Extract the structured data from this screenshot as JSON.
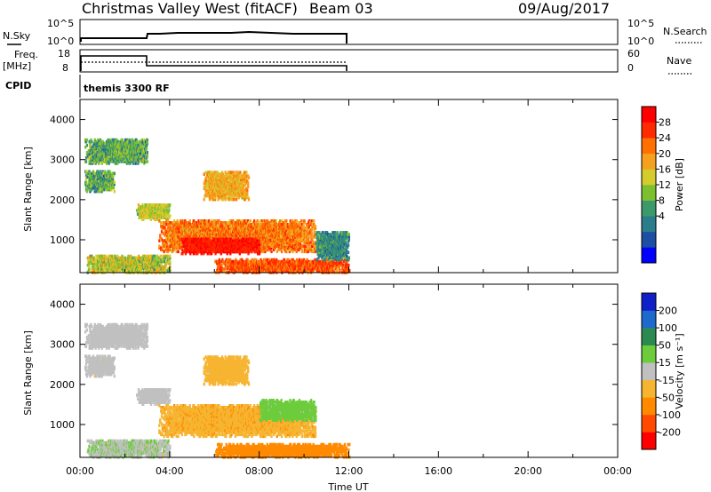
{
  "header": {
    "title": "Christmas Valley West (fitACF)",
    "beam": "Beam 03",
    "date": "09/Aug/2017"
  },
  "strip": {
    "nsky_label": "N.Sky",
    "nsearch_label": "N.Search",
    "nsky_ticks": [
      "10^5",
      "10^0"
    ],
    "nsearch_ticks": [
      "10^5",
      "10^0"
    ],
    "freq_label_1": "Freq.",
    "freq_label_2": "[MHz]",
    "freq_ticks": [
      "18",
      "8"
    ],
    "nave_label": "Nave",
    "nave_ticks": [
      "60",
      "0"
    ],
    "cpid_label": "CPID",
    "cpid_value": "themis 3300 RF"
  },
  "chart_data": [
    {
      "type": "heatmap",
      "name": "power",
      "ylabel": "Slant Range [km]",
      "xlabel": "",
      "ylim": [
        180,
        4500
      ],
      "xlim": [
        0,
        24
      ],
      "yticks": [
        "4000",
        "3000",
        "2000",
        "1000"
      ],
      "colorbar_label": "Power [dB]",
      "colorbar_ticks": [
        "28",
        "24",
        "20",
        "16",
        "12",
        "8",
        "4"
      ],
      "colors": [
        "#0000ff",
        "#1c4fa3",
        "#2c7d8c",
        "#3c9a6a",
        "#7cc030",
        "#d4cc2c",
        "#f6a020",
        "#ff7000",
        "#ff2a00",
        "#ff0000"
      ],
      "regions": [
        {
          "t0": 0.2,
          "t1": 3.0,
          "r0": 2900,
          "r1": 3500,
          "v": 10,
          "s": 8
        },
        {
          "t0": 0.2,
          "t1": 1.5,
          "r0": 2200,
          "r1": 2700,
          "v": 10,
          "s": 8
        },
        {
          "t0": 2.5,
          "t1": 4.0,
          "r0": 1500,
          "r1": 1900,
          "v": 14,
          "s": 6
        },
        {
          "t0": 5.5,
          "t1": 7.5,
          "r0": 2000,
          "r1": 2700,
          "v": 17,
          "s": 6
        },
        {
          "t0": 3.5,
          "t1": 10.5,
          "r0": 700,
          "r1": 1500,
          "v": 20,
          "s": 9
        },
        {
          "t0": 4.5,
          "t1": 8.0,
          "r0": 650,
          "r1": 1050,
          "v": 26,
          "s": 5
        },
        {
          "t0": 6.0,
          "t1": 12.0,
          "r0": 180,
          "r1": 500,
          "v": 22,
          "s": 8
        },
        {
          "t0": 0.3,
          "t1": 4.0,
          "r0": 180,
          "r1": 600,
          "v": 14,
          "s": 10
        },
        {
          "t0": 10.5,
          "t1": 12.0,
          "r0": 500,
          "r1": 1200,
          "v": 8,
          "s": 5
        }
      ]
    },
    {
      "type": "heatmap",
      "name": "velocity",
      "ylabel": "Slant Range [km]",
      "xlabel": "Time UT",
      "ylim": [
        180,
        4500
      ],
      "xlim": [
        0,
        24
      ],
      "yticks": [
        "4000",
        "3000",
        "2000",
        "1000"
      ],
      "xticks": [
        "00:00",
        "04:00",
        "08:00",
        "12:00",
        "16:00",
        "20:00",
        "00:00"
      ],
      "colorbar_label": "Velocity [m s⁻¹]",
      "colorbar_ticks": [
        "200",
        "100",
        "50",
        "15",
        "-15",
        "-50",
        "-100",
        "-200"
      ],
      "colors": [
        "#ff0000",
        "#ff4a00",
        "#ff8a00",
        "#f6b430",
        "#c0c0c0",
        "#6ccc3c",
        "#2a8a50",
        "#1e6acc",
        "#1020c8"
      ],
      "regions": [
        {
          "t0": 0.2,
          "t1": 3.0,
          "r0": 2900,
          "r1": 3500,
          "v": -5,
          "s": 12
        },
        {
          "t0": 0.2,
          "t1": 1.5,
          "r0": 2200,
          "r1": 2700,
          "v": -5,
          "s": 15
        },
        {
          "t0": 2.5,
          "t1": 4.0,
          "r0": 1500,
          "r1": 1900,
          "v": -5,
          "s": 10
        },
        {
          "t0": 5.5,
          "t1": 7.5,
          "r0": 2000,
          "r1": 2700,
          "v": -30,
          "s": 20
        },
        {
          "t0": 3.5,
          "t1": 10.5,
          "r0": 700,
          "r1": 1500,
          "v": -40,
          "s": 30
        },
        {
          "t0": 8.0,
          "t1": 10.5,
          "r0": 1100,
          "r1": 1600,
          "v": 30,
          "s": 25
        },
        {
          "t0": 6.0,
          "t1": 12.0,
          "r0": 180,
          "r1": 500,
          "v": -70,
          "s": 25
        },
        {
          "t0": 0.3,
          "t1": 4.0,
          "r0": 180,
          "r1": 600,
          "v": 10,
          "s": 40
        }
      ]
    }
  ]
}
